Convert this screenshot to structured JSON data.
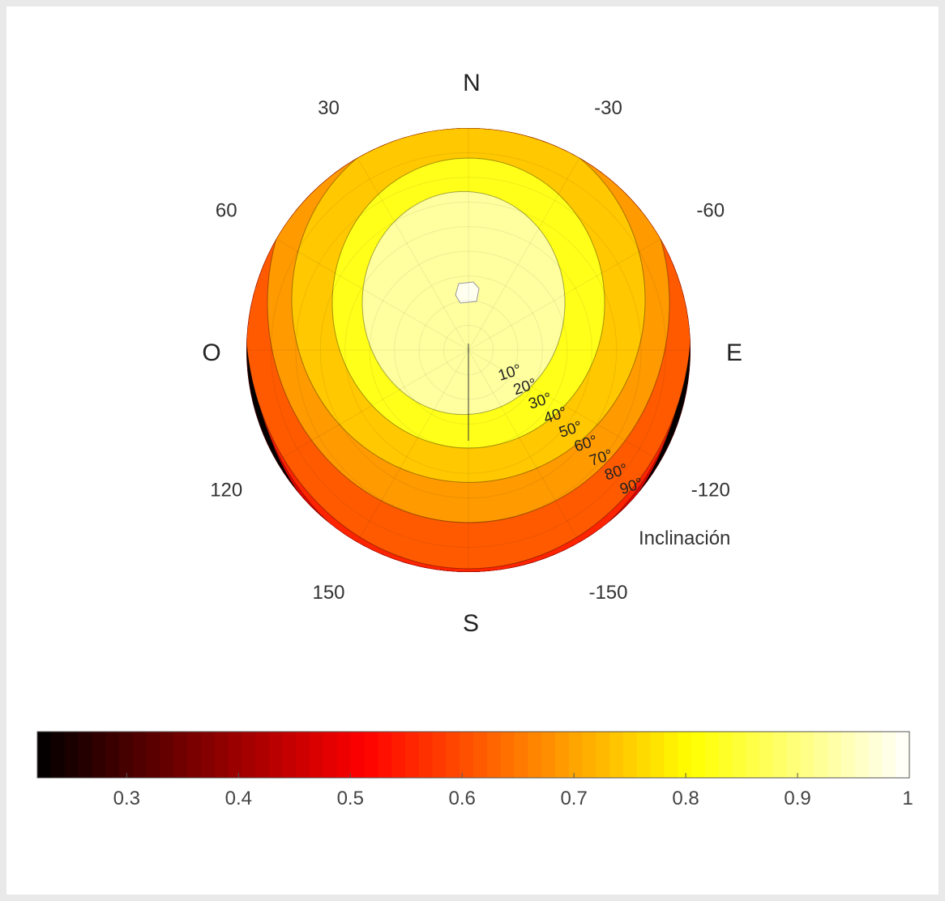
{
  "chart_data": {
    "type": "heatmap",
    "projection": "polar",
    "title": "",
    "cardinals": {
      "north": "N",
      "south": "S",
      "east": "E",
      "west": "O"
    },
    "azimuth_labels": [
      {
        "azimuth": 30,
        "label": "30"
      },
      {
        "azimuth": -30,
        "label": "-30"
      },
      {
        "azimuth": 60,
        "label": "60"
      },
      {
        "azimuth": -60,
        "label": "-60"
      },
      {
        "azimuth": 120,
        "label": "120"
      },
      {
        "azimuth": -120,
        "label": "-120"
      },
      {
        "azimuth": 150,
        "label": "150"
      },
      {
        "azimuth": -150,
        "label": "-150"
      }
    ],
    "radial_axis": {
      "label": "Inclinación",
      "tick_labels": [
        "10°",
        "20°",
        "30°",
        "40°",
        "50°",
        "60°",
        "70°",
        "80°",
        "90°"
      ],
      "range": [
        0,
        90
      ]
    },
    "contour_levels": [
      0.3,
      0.35,
      0.4,
      0.45,
      0.5,
      0.55,
      0.6,
      0.65,
      0.7,
      0.8,
      0.9,
      1.0
    ],
    "colorbar": {
      "colormap": "hot",
      "range": [
        0.22,
        1.0
      ],
      "ticks": [
        {
          "value": 0.3,
          "label": "0.3"
        },
        {
          "value": 0.4,
          "label": "0.4"
        },
        {
          "value": 0.5,
          "label": "0.5"
        },
        {
          "value": 0.6,
          "label": "0.6"
        },
        {
          "value": 0.7,
          "label": "0.7"
        },
        {
          "value": 0.8,
          "label": "0.8"
        },
        {
          "value": 0.9,
          "label": "0.9"
        },
        {
          "value": 1.0,
          "label": "1"
        }
      ]
    },
    "legend": "colorbar-bottom"
  },
  "colors": {
    "band_colors": [
      "#050000",
      "#3a0000",
      "#7a0000",
      "#b00000",
      "#e00500",
      "#ff2400",
      "#ff5a00",
      "#ff9a00",
      "#ffc800",
      "#ffff1a",
      "#ffffa0",
      "#fffff0"
    ]
  }
}
